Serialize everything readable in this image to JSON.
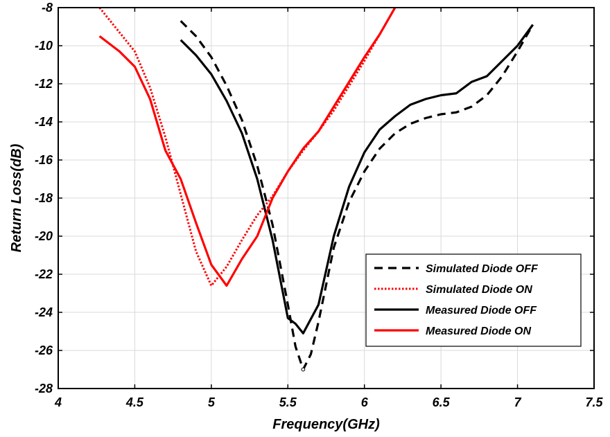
{
  "chart_data": {
    "type": "line",
    "xlabel": "Frequency(GHz)",
    "ylabel": "Return Loss(dB)",
    "xlim": [
      4,
      7.5
    ],
    "ylim": [
      -28,
      -8
    ],
    "x_ticks": [
      4,
      4.5,
      5,
      5.5,
      6,
      6.5,
      7,
      7.5
    ],
    "x_tick_labels": [
      "4",
      "4.5",
      "5",
      "5.5",
      "6",
      "6.5",
      "7",
      "7.5"
    ],
    "y_ticks": [
      -28,
      -26,
      -24,
      -22,
      -20,
      -18,
      -16,
      -14,
      -12,
      -10,
      -8
    ],
    "y_tick_labels": [
      "-28",
      "-26",
      "-24",
      "-22",
      "-20",
      "-18",
      "-16",
      "-14",
      "-12",
      "-10",
      "-8"
    ],
    "grid": true,
    "legend_position": "bottom-right",
    "series": [
      {
        "name": "Simulated Diode OFF",
        "color": "#000000",
        "style": "dashed",
        "x": [
          4.8,
          4.9,
          5.0,
          5.1,
          5.2,
          5.3,
          5.4,
          5.5,
          5.55,
          5.6,
          5.65,
          5.7,
          5.8,
          5.9,
          6.0,
          6.1,
          6.2,
          6.3,
          6.4,
          6.5,
          6.6,
          6.7,
          6.8,
          6.9,
          7.0,
          7.1
        ],
        "y": [
          -8.7,
          -9.5,
          -10.6,
          -12.1,
          -13.9,
          -16.3,
          -19.4,
          -23.6,
          -25.8,
          -27.0,
          -26.2,
          -24.5,
          -20.6,
          -18.2,
          -16.6,
          -15.4,
          -14.6,
          -14.1,
          -13.8,
          -13.6,
          -13.5,
          -13.2,
          -12.6,
          -11.6,
          -10.3,
          -8.9
        ]
      },
      {
        "name": "Simulated Diode ON",
        "color": "#ff0000",
        "style": "dotted",
        "x": [
          4.27,
          4.4,
          4.5,
          4.6,
          4.7,
          4.8,
          4.9,
          5.0,
          5.1,
          5.2,
          5.3,
          5.4,
          5.5,
          5.6,
          5.7,
          5.8,
          5.9,
          6.0,
          6.1,
          6.2
        ],
        "y": [
          -8.0,
          -9.3,
          -10.3,
          -12.2,
          -14.8,
          -17.8,
          -20.8,
          -22.6,
          -21.6,
          -20.2,
          -18.9,
          -17.9,
          -16.6,
          -15.5,
          -14.5,
          -13.4,
          -12.1,
          -10.8,
          -9.4,
          -8.0
        ]
      },
      {
        "name": "Measured Diode OFF",
        "color": "#000000",
        "style": "solid",
        "x": [
          4.8,
          4.9,
          5.0,
          5.1,
          5.2,
          5.3,
          5.4,
          5.5,
          5.55,
          5.6,
          5.7,
          5.8,
          5.9,
          6.0,
          6.1,
          6.2,
          6.3,
          6.4,
          6.5,
          6.6,
          6.7,
          6.8,
          6.9,
          7.0,
          7.1
        ],
        "y": [
          -9.7,
          -10.5,
          -11.5,
          -12.9,
          -14.6,
          -17.0,
          -20.2,
          -24.3,
          -24.6,
          -25.1,
          -23.6,
          -20.0,
          -17.4,
          -15.6,
          -14.4,
          -13.7,
          -13.1,
          -12.8,
          -12.6,
          -12.5,
          -11.9,
          -11.6,
          -10.8,
          -10.0,
          -8.9
        ]
      },
      {
        "name": "Measured Diode ON",
        "color": "#ff0000",
        "style": "solid",
        "x": [
          4.27,
          4.4,
          4.5,
          4.6,
          4.7,
          4.8,
          4.9,
          5.0,
          5.1,
          5.2,
          5.3,
          5.4,
          5.5,
          5.6,
          5.7,
          5.8,
          5.9,
          6.0,
          6.1,
          6.2
        ],
        "y": [
          -9.5,
          -10.3,
          -11.1,
          -12.8,
          -15.5,
          -17.0,
          -19.3,
          -21.5,
          -22.6,
          -21.2,
          -20.0,
          -18.0,
          -16.6,
          -15.4,
          -14.5,
          -13.2,
          -11.9,
          -10.6,
          -9.4,
          -8.0
        ]
      }
    ]
  }
}
